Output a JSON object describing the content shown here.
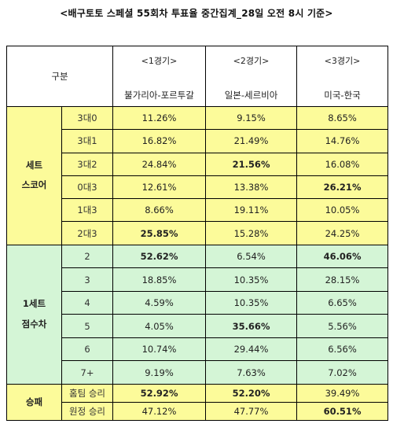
{
  "title": "<배구토토 스페셜 55회차 투표율 중간집계_28일 오전 8시 기준>",
  "header": {
    "corner": "구분",
    "games": [
      {
        "num": "<1경기>",
        "team": "불가리아-포르투갈"
      },
      {
        "num": "<2경기>",
        "team": "일본-세르비아"
      },
      {
        "num": "<3경기>",
        "team": "미국-한국"
      }
    ]
  },
  "sections": {
    "set_score": {
      "label_line1": "세트",
      "label_line2": "스코어",
      "color": "#fcfb9a",
      "rows": [
        {
          "label": "3대0",
          "values": [
            "11.26%",
            "9.15%",
            "8.65%"
          ],
          "bold": [
            false,
            false,
            false
          ]
        },
        {
          "label": "3대1",
          "values": [
            "16.82%",
            "21.49%",
            "14.76%"
          ],
          "bold": [
            false,
            false,
            false
          ]
        },
        {
          "label": "3대2",
          "values": [
            "24.84%",
            "21.56%",
            "16.08%"
          ],
          "bold": [
            false,
            true,
            false
          ]
        },
        {
          "label": "0대3",
          "values": [
            "12.61%",
            "13.38%",
            "26.21%"
          ],
          "bold": [
            false,
            false,
            true
          ]
        },
        {
          "label": "1대3",
          "values": [
            "8.66%",
            "19.11%",
            "10.05%"
          ],
          "bold": [
            false,
            false,
            false
          ]
        },
        {
          "label": "2대3",
          "values": [
            "25.85%",
            "15.28%",
            "24.25%"
          ],
          "bold": [
            true,
            false,
            false
          ]
        }
      ]
    },
    "point_diff": {
      "label_line1": "1세트",
      "label_line2": "점수차",
      "color": "#d4f5d6",
      "rows": [
        {
          "label": "2",
          "values": [
            "52.62%",
            "6.54%",
            "46.06%"
          ],
          "bold": [
            true,
            false,
            true
          ]
        },
        {
          "label": "3",
          "values": [
            "18.85%",
            "10.35%",
            "28.15%"
          ],
          "bold": [
            false,
            false,
            false
          ]
        },
        {
          "label": "4",
          "values": [
            "4.59%",
            "10.35%",
            "6.65%"
          ],
          "bold": [
            false,
            false,
            false
          ]
        },
        {
          "label": "5",
          "values": [
            "4.05%",
            "35.66%",
            "5.56%"
          ],
          "bold": [
            false,
            true,
            false
          ]
        },
        {
          "label": "6",
          "values": [
            "10.74%",
            "29.44%",
            "6.56%"
          ],
          "bold": [
            false,
            false,
            false
          ]
        },
        {
          "label": "7+",
          "values": [
            "9.19%",
            "7.63%",
            "7.02%"
          ],
          "bold": [
            false,
            false,
            false
          ]
        }
      ]
    },
    "win_loss": {
      "label_line1": "승패",
      "color": "#fcfb9a",
      "rows": [
        {
          "label": "홈팀 승리",
          "values": [
            "52.92%",
            "52.20%",
            "39.49%"
          ],
          "bold": [
            true,
            true,
            false
          ]
        },
        {
          "label": "원정 승리",
          "values": [
            "47.12%",
            "47.77%",
            "60.51%"
          ],
          "bold": [
            false,
            false,
            true
          ]
        }
      ]
    }
  }
}
